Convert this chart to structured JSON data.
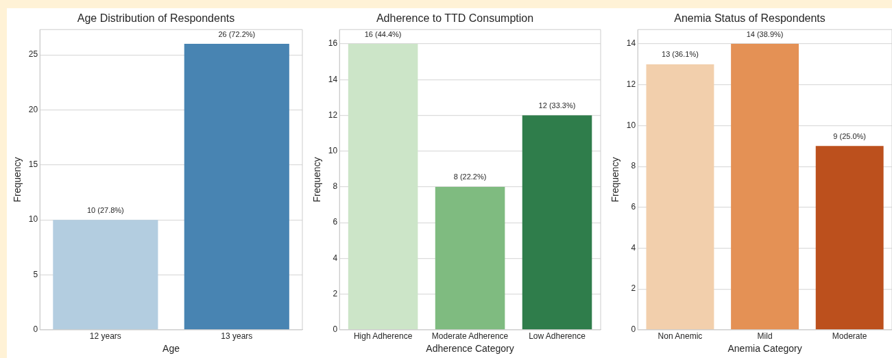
{
  "chart_data": [
    {
      "type": "bar",
      "title": "Age Distribution of Respondents",
      "xlabel": "Age",
      "ylabel": "Frequency",
      "categories": [
        "12 years",
        "13 years"
      ],
      "values": [
        10,
        26
      ],
      "colors": [
        "#b3cde0",
        "#4884b2"
      ],
      "value_labels": [
        "10 (27.8%)",
        "26 (72.2%)"
      ],
      "ylim": [
        0,
        27.3
      ],
      "yticks": [
        0,
        5,
        10,
        15,
        20,
        25
      ],
      "grid": "y",
      "legend": false
    },
    {
      "type": "bar",
      "title": "Adherence to TTD Consumption",
      "xlabel": "Adherence Category",
      "ylabel": "Frequency",
      "categories": [
        "High Adherence",
        "Moderate Adherence",
        "Low Adherence"
      ],
      "values": [
        16,
        8,
        12
      ],
      "colors": [
        "#cce5c8",
        "#7fbb80",
        "#2f7d4b"
      ],
      "value_labels": [
        "16 (44.4%)",
        "8 (22.2%)",
        "12 (33.3%)"
      ],
      "ylim": [
        0,
        16.8
      ],
      "yticks": [
        0,
        2,
        4,
        6,
        8,
        10,
        12,
        14,
        16
      ],
      "grid": "y",
      "legend": false
    },
    {
      "type": "bar",
      "title": "Anemia Status of Respondents",
      "xlabel": "Anemia Category",
      "ylabel": "Frequency",
      "categories": [
        "Non Anemic",
        "Mild",
        "Moderate"
      ],
      "values": [
        13,
        14,
        9
      ],
      "colors": [
        "#f2cfac",
        "#e49155",
        "#bc501d"
      ],
      "value_labels": [
        "13 (36.1%)",
        "14 (38.9%)",
        "9 (25.0%)"
      ],
      "ylim": [
        0,
        14.7
      ],
      "yticks": [
        0,
        2,
        4,
        6,
        8,
        10,
        12,
        14
      ],
      "grid": "y",
      "legend": false
    }
  ]
}
